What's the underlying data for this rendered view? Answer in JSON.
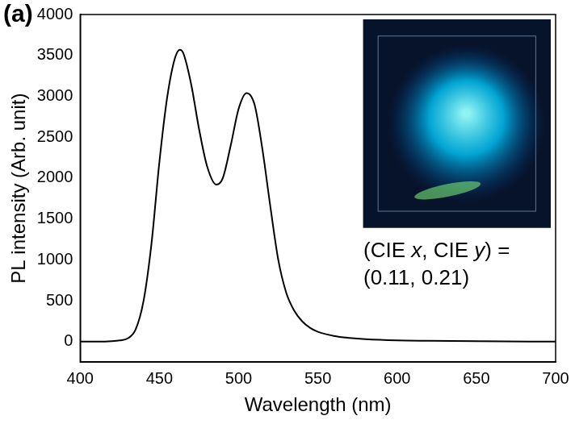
{
  "chart_data": {
    "type": "line",
    "panel_label": "(a)",
    "x_label": "Wavelength (nm)",
    "y_label": "PL intensity (Arb. unit)",
    "x": [
      400,
      410,
      420,
      425,
      430,
      435,
      440,
      445,
      450,
      455,
      460,
      463,
      465,
      470,
      475,
      480,
      486,
      490,
      495,
      500,
      505,
      510,
      515,
      520,
      525,
      530,
      535,
      540,
      545,
      550,
      560,
      570,
      580,
      600,
      620,
      650,
      700
    ],
    "values": [
      0,
      0,
      5,
      15,
      40,
      150,
      500,
      1200,
      2200,
      3000,
      3480,
      3570,
      3530,
      3150,
      2600,
      2150,
      1920,
      2000,
      2400,
      2850,
      3040,
      2900,
      2350,
      1650,
      1000,
      600,
      380,
      250,
      170,
      120,
      70,
      45,
      30,
      15,
      10,
      5,
      0
    ],
    "color": "#000000",
    "xlim": [
      400,
      700
    ],
    "xticks": [
      400,
      450,
      500,
      550,
      600,
      650,
      700
    ],
    "ylim": [
      -250,
      4000
    ],
    "yticks": [
      0,
      500,
      1000,
      1500,
      2000,
      2500,
      3000,
      3500,
      4000
    ],
    "grid": false,
    "annotations": [
      "(CIE x, CIE y) =",
      "(0.11, 0.21)"
    ]
  }
}
